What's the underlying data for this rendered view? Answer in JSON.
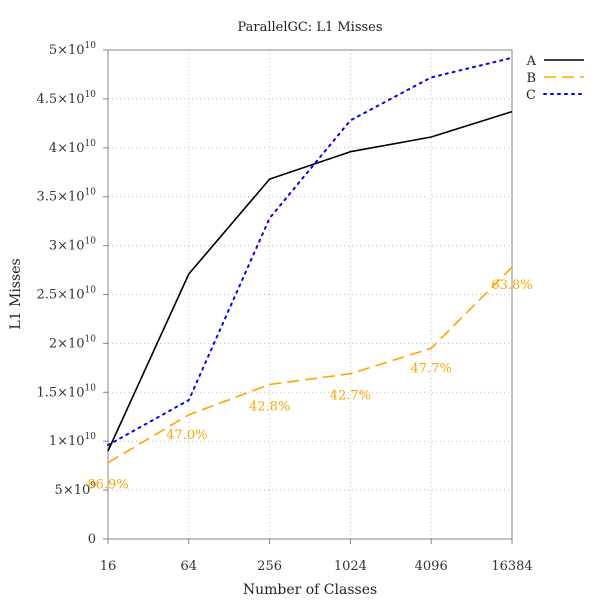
{
  "chart_data": {
    "type": "line",
    "title": "ParallelGC: L1 Misses",
    "xlabel": "Number of Classes",
    "ylabel": "L1 Misses",
    "x_scale": "log2",
    "categories": [
      "16",
      "64",
      "256",
      "1024",
      "4096",
      "16384"
    ],
    "x": [
      16,
      64,
      256,
      1024,
      4096,
      16384
    ],
    "ylim": [
      0,
      50000000000
    ],
    "y_ticks": [
      {
        "value": 0,
        "mantissa": "0",
        "exp": ""
      },
      {
        "value": 5000000000,
        "mantissa": "5×10",
        "exp": "9"
      },
      {
        "value": 10000000000,
        "mantissa": "1×10",
        "exp": "10"
      },
      {
        "value": 15000000000,
        "mantissa": "1.5×10",
        "exp": "10"
      },
      {
        "value": 20000000000,
        "mantissa": "2×10",
        "exp": "10"
      },
      {
        "value": 25000000000,
        "mantissa": "2.5×10",
        "exp": "10"
      },
      {
        "value": 30000000000,
        "mantissa": "3×10",
        "exp": "10"
      },
      {
        "value": 35000000000,
        "mantissa": "3.5×10",
        "exp": "10"
      },
      {
        "value": 40000000000,
        "mantissa": "4×10",
        "exp": "10"
      },
      {
        "value": 45000000000,
        "mantissa": "4.5×10",
        "exp": "10"
      },
      {
        "value": 50000000000,
        "mantissa": "5×10",
        "exp": "10"
      }
    ],
    "grid": true,
    "legend_position": "top-right",
    "series": [
      {
        "name": "A",
        "color": "#000000",
        "style": "solid",
        "values": [
          9000000000,
          27100000000,
          36800000000,
          39600000000,
          41100000000,
          43700000000
        ]
      },
      {
        "name": "B",
        "color": "#ffa500",
        "style": "dashed",
        "values": [
          7800000000,
          12700000000,
          15800000000,
          16900000000,
          19500000000,
          27800000000
        ],
        "annotations": [
          "86.9%",
          "47.0%",
          "42.8%",
          "42.7%",
          "47.7%",
          "63.8%"
        ]
      },
      {
        "name": "C",
        "color": "#0000ff",
        "style": "dotted",
        "values": [
          9600000000,
          14200000000,
          32800000000,
          42800000000,
          47200000000,
          49200000000
        ]
      }
    ]
  }
}
